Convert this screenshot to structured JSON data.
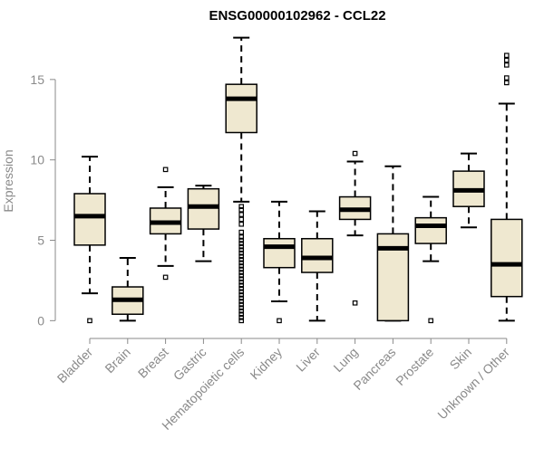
{
  "chart_data": {
    "type": "boxplot",
    "title": "ENSG00000102962 - CCL22",
    "xlabel": "",
    "ylabel": "Expression",
    "ylim": [
      -0.6,
      18.2
    ],
    "yticks": [
      0,
      5,
      10,
      15
    ],
    "grid": false,
    "legend": "none",
    "box_fill": "#efe8d0",
    "box_stroke": "#000000",
    "categories": [
      "Bladder",
      "Brain",
      "Breast",
      "Gastric",
      "Hematopoietic cells",
      "Kidney",
      "Liver",
      "Lung",
      "Pancreas",
      "Prostate",
      "Skin",
      "Unknown / Other"
    ],
    "boxes": [
      {
        "q1": 4.7,
        "median": 6.5,
        "q3": 7.9,
        "whisker_low": 1.7,
        "whisker_high": 10.2,
        "outliers": [
          0
        ]
      },
      {
        "q1": 0.4,
        "median": 1.3,
        "q3": 2.1,
        "whisker_low": 0,
        "whisker_high": 3.9,
        "outliers": []
      },
      {
        "q1": 5.4,
        "median": 6.1,
        "q3": 7.0,
        "whisker_low": 3.4,
        "whisker_high": 8.3,
        "outliers": [
          2.7,
          9.4
        ]
      },
      {
        "q1": 5.7,
        "median": 7.1,
        "q3": 8.2,
        "whisker_low": 3.7,
        "whisker_high": 8.4,
        "outliers": []
      },
      {
        "q1": 11.7,
        "median": 13.8,
        "q3": 14.7,
        "whisker_low": 7.4,
        "whisker_high": 17.6,
        "outliers": [
          0.0,
          0.2,
          0.4,
          0.6,
          0.8,
          1.0,
          1.2,
          1.4,
          1.6,
          1.8,
          2.0,
          2.2,
          2.4,
          2.6,
          2.8,
          3.0,
          3.2,
          3.4,
          3.6,
          3.8,
          4.0,
          4.2,
          4.4,
          4.6,
          4.8,
          5.0,
          5.2,
          5.5,
          6.0,
          6.3,
          6.6,
          6.9,
          7.1
        ]
      },
      {
        "q1": 3.3,
        "median": 4.6,
        "q3": 5.1,
        "whisker_low": 1.2,
        "whisker_high": 7.4,
        "outliers": [
          0
        ]
      },
      {
        "q1": 3.0,
        "median": 3.9,
        "q3": 5.1,
        "whisker_low": 0,
        "whisker_high": 6.8,
        "outliers": []
      },
      {
        "q1": 6.3,
        "median": 6.9,
        "q3": 7.7,
        "whisker_low": 5.3,
        "whisker_high": 9.9,
        "outliers": [
          1.1,
          10.4
        ]
      },
      {
        "q1": 0,
        "median": 4.5,
        "q3": 5.4,
        "whisker_low": 0,
        "whisker_high": 9.6,
        "outliers": []
      },
      {
        "q1": 4.8,
        "median": 5.9,
        "q3": 6.4,
        "whisker_low": 3.7,
        "whisker_high": 7.7,
        "outliers": [
          0
        ]
      },
      {
        "q1": 7.1,
        "median": 8.1,
        "q3": 9.3,
        "whisker_low": 5.8,
        "whisker_high": 10.4,
        "outliers": []
      },
      {
        "q1": 1.5,
        "median": 3.5,
        "q3": 6.3,
        "whisker_low": 0,
        "whisker_high": 13.5,
        "outliers": [
          14.8,
          15.1,
          15.9,
          16.2,
          16.5
        ]
      }
    ]
  }
}
